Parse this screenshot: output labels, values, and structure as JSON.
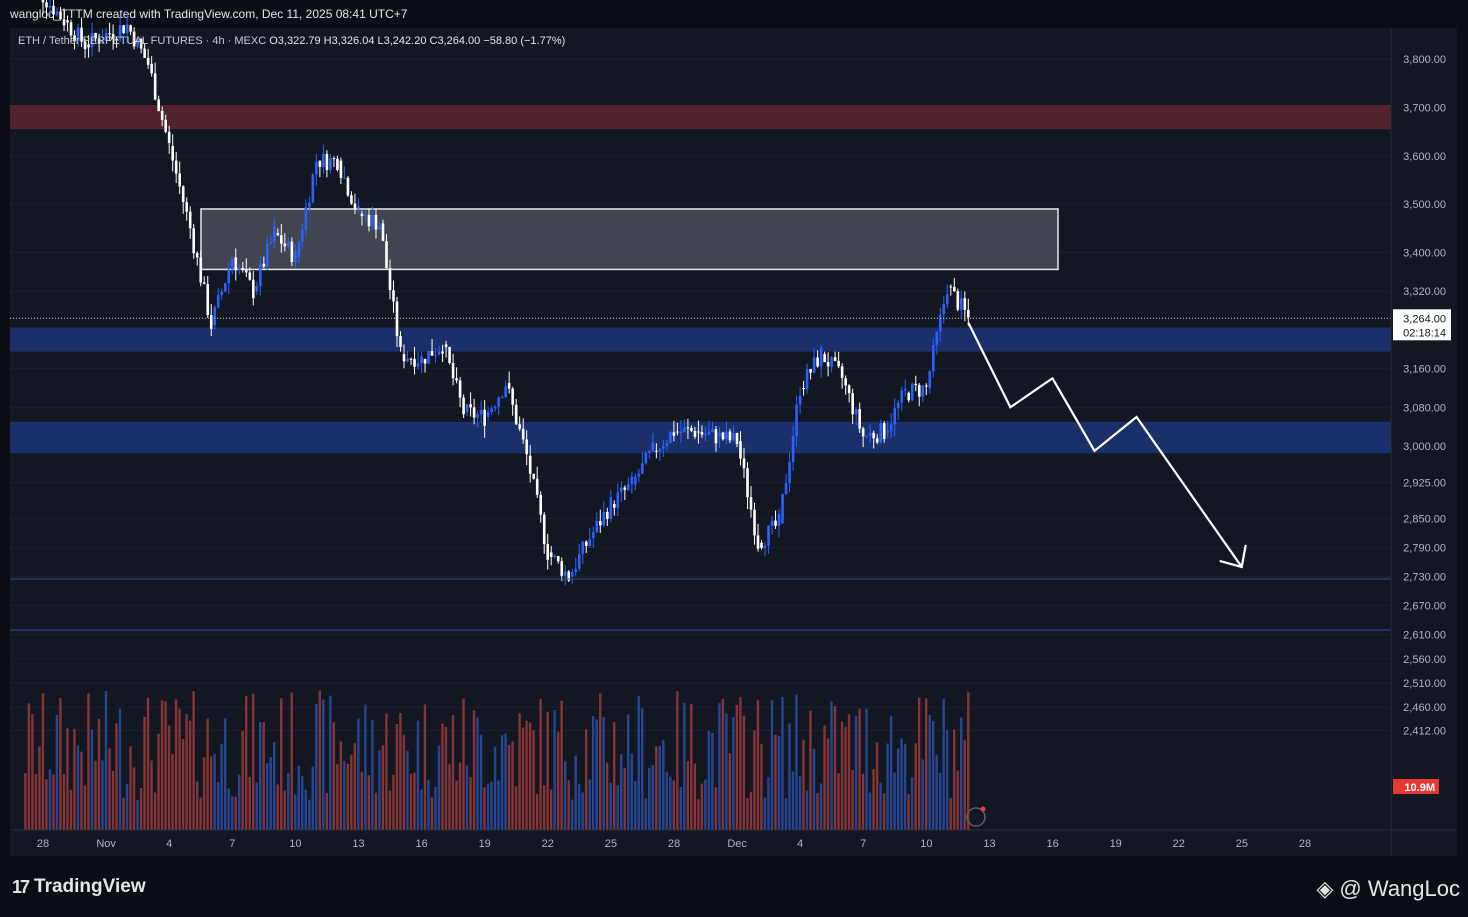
{
  "header": {
    "caption": "wangloc_TTTM created with TradingView.com, Dec 11, 2025 08:41 UTC+7"
  },
  "legend": {
    "symbol": "ETH / Tether PERPETUAL FUTURES · 4h · MEXC",
    "open": "O3,322.79",
    "high": "H3,326.04",
    "low": "L3,242.20",
    "close": "C3,264.00",
    "change": "−58.80 (−1.77%)"
  },
  "colors": {
    "background": "#131722",
    "up": "#2962ff",
    "down": "#ffffff",
    "volume_up": "#2a4fa8",
    "volume_down": "#9b3a3a",
    "resistance_zone": "#5a2431",
    "supply_box": "#4a4d58",
    "demand_zone": "#1d3272",
    "projection": "#ffffff"
  },
  "chart_data": {
    "type": "candlestick",
    "timeframe": "4h",
    "price_axis": {
      "ticks": [
        3800,
        3700,
        3600,
        3500,
        3400,
        3320,
        3264,
        3160,
        3080,
        3000,
        2925,
        2850,
        2790,
        2730,
        2670,
        2610,
        2560,
        2510,
        2460,
        2412
      ],
      "tick_labels": [
        "3,800.00",
        "3,700.00",
        "3,600.00",
        "3,500.00",
        "3,400.00",
        "3,320.00",
        "3,160.00",
        "3,080.00",
        "3,000.00",
        "2,925.00",
        "2,850.00",
        "2,790.00",
        "2,730.00",
        "2,670.00",
        "2,610.00",
        "2,560.00",
        "2,510.00",
        "2,460.00",
        "2,412.00"
      ],
      "last_price": "3,264.00",
      "countdown": "02:18:14",
      "volume_label": "10.9M"
    },
    "x_axis": {
      "tick_labels": [
        "28",
        "Nov",
        "4",
        "7",
        "10",
        "13",
        "16",
        "19",
        "22",
        "25",
        "28",
        "Dec",
        "4",
        "7",
        "10",
        "13",
        "16",
        "19",
        "22",
        "25",
        "28"
      ]
    },
    "price_path": [
      [
        "Oct 27",
        3980
      ],
      [
        "Oct 29",
        3880
      ],
      [
        "Oct 30",
        3830
      ],
      [
        "Nov 1",
        3870
      ],
      [
        "Nov 2",
        3790
      ],
      [
        "Nov 3",
        3620
      ],
      [
        "Nov 4",
        3450
      ],
      [
        "Nov 5",
        3250
      ],
      [
        "Nov 6",
        3390
      ],
      [
        "Nov 7",
        3320
      ],
      [
        "Nov 8",
        3440
      ],
      [
        "Nov 9",
        3390
      ],
      [
        "Nov 10",
        3590
      ],
      [
        "Nov 11",
        3590
      ],
      [
        "Nov 12",
        3480
      ],
      [
        "Nov 13",
        3460
      ],
      [
        "Nov 14",
        3190
      ],
      [
        "Nov 15",
        3180
      ],
      [
        "Nov 16",
        3210
      ],
      [
        "Nov 17",
        3070
      ],
      [
        "Nov 18",
        3060
      ],
      [
        "Nov 19",
        3130
      ],
      [
        "Nov 20",
        2980
      ],
      [
        "Nov 21",
        2780
      ],
      [
        "Nov 22",
        2730
      ],
      [
        "Nov 23",
        2810
      ],
      [
        "Nov 24",
        2880
      ],
      [
        "Nov 25",
        2920
      ],
      [
        "Nov 26",
        2990
      ],
      [
        "Nov 27",
        3030
      ],
      [
        "Nov 28",
        3030
      ],
      [
        "Nov 29",
        3020
      ],
      [
        "Nov 30",
        3010
      ],
      [
        "Dec 1",
        2800
      ],
      [
        "Dec 2",
        2840
      ],
      [
        "Dec 3",
        3120
      ],
      [
        "Dec 4",
        3190
      ],
      [
        "Dec 5",
        3140
      ],
      [
        "Dec 6",
        3020
      ],
      [
        "Dec 7",
        3030
      ],
      [
        "Dec 8",
        3110
      ],
      [
        "Dec 9",
        3120
      ],
      [
        "Dec 10",
        3330
      ],
      [
        "Dec 11",
        3264
      ]
    ],
    "zones": [
      {
        "name": "resistance",
        "from": 3655,
        "to": 3705
      },
      {
        "name": "supply",
        "from": 3365,
        "to": 3490
      },
      {
        "name": "demand-upper",
        "from": 3195,
        "to": 3245
      },
      {
        "name": "demand-lower",
        "from": 2985,
        "to": 3050
      }
    ],
    "levels": [
      2725,
      2620
    ],
    "projection": [
      [
        "Dec 11",
        3255
      ],
      [
        "Dec 13",
        3080
      ],
      [
        "Dec 15",
        3140
      ],
      [
        "Dec 17",
        2990
      ],
      [
        "Dec 19",
        3060
      ],
      [
        "Dec 24",
        2750
      ]
    ]
  },
  "footer": {
    "brand": "TradingView",
    "author": "@ WangLoc"
  }
}
